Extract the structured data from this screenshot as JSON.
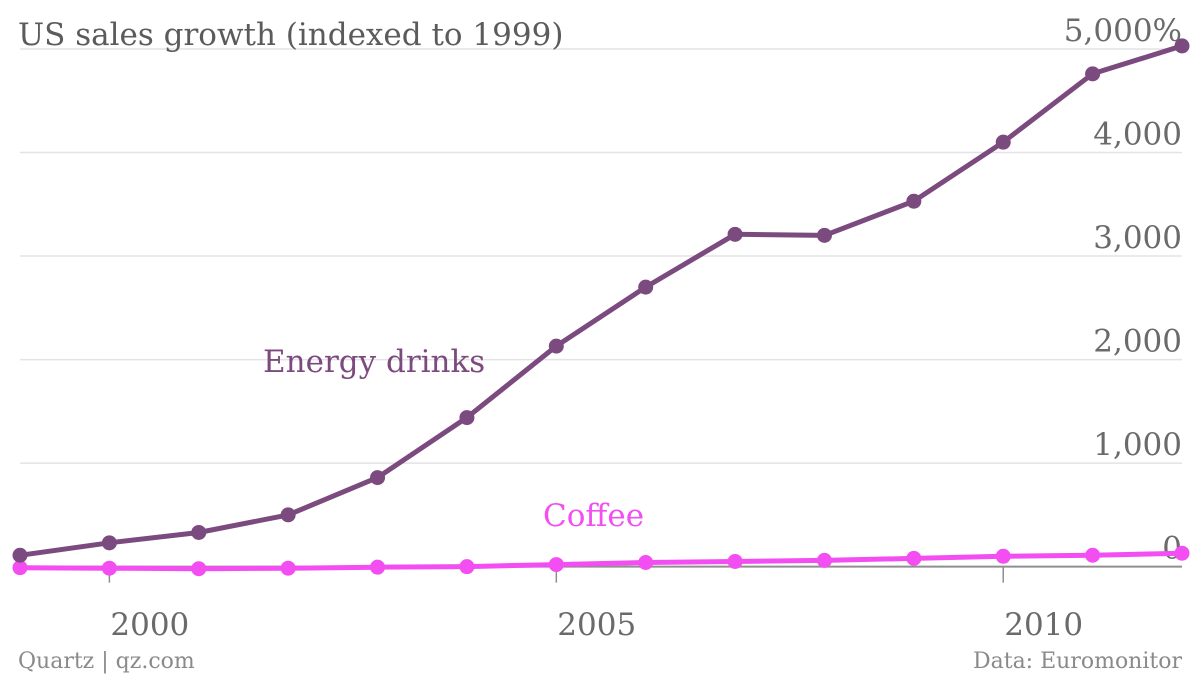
{
  "chart_data": {
    "type": "line",
    "title": "US sales growth (indexed to 1999)",
    "x": [
      1999,
      2000,
      2001,
      2002,
      2003,
      2004,
      2005,
      2006,
      2007,
      2008,
      2009,
      2010,
      2011,
      2012
    ],
    "xlim": [
      1999,
      2012
    ],
    "xticks": [
      "2000",
      "2005",
      "2010"
    ],
    "ylim": [
      -100,
      5000
    ],
    "yticks": [
      {
        "value": 0,
        "label": "0"
      },
      {
        "value": 1000,
        "label": "1,000"
      },
      {
        "value": 2000,
        "label": "2,000"
      },
      {
        "value": 3000,
        "label": "3,000"
      },
      {
        "value": 4000,
        "label": "4,000"
      },
      {
        "value": 5000,
        "label": "5,000%"
      }
    ],
    "grid": true,
    "series": [
      {
        "name": "Energy drinks",
        "color": "#7b4a7e",
        "values": [
          110,
          230,
          330,
          500,
          860,
          1440,
          2130,
          2700,
          3210,
          3200,
          3530,
          4100,
          4760,
          5030
        ]
      },
      {
        "name": "Coffee",
        "color": "#f24ef2",
        "values": [
          -10,
          -15,
          -20,
          -15,
          -5,
          0,
          20,
          40,
          50,
          60,
          80,
          100,
          110,
          130
        ]
      }
    ]
  },
  "footer": {
    "source_left": "Quartz | qz.com",
    "source_right": "Data: Euromonitor"
  }
}
